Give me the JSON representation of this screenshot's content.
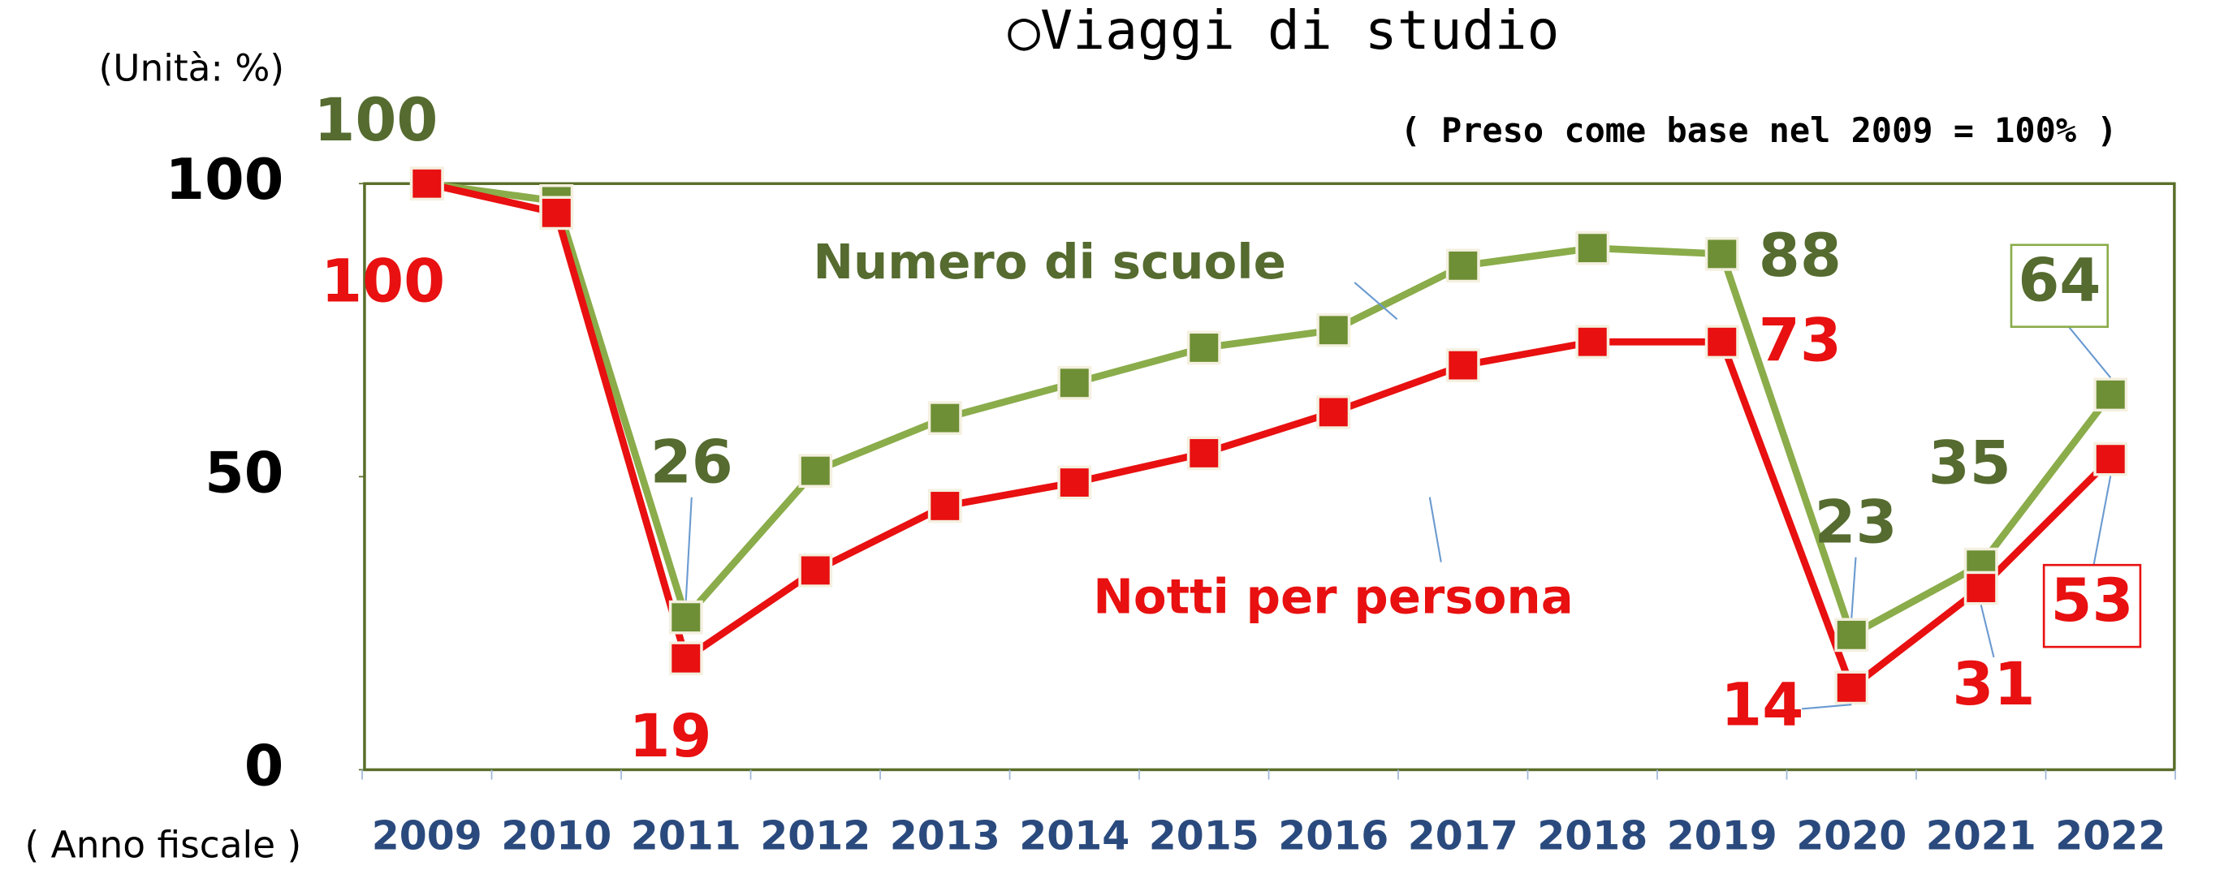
{
  "chart_data": {
    "type": "line",
    "title": "○Viaggi di studio",
    "subtitle": "( Preso come base nel 2009 = 100% )",
    "y_axis_label": "(Unità: %)",
    "x_axis_label": "( Anno fiscale )",
    "categories": [
      "2009",
      "2010",
      "2011",
      "2012",
      "2013",
      "2014",
      "2015",
      "2016",
      "2017",
      "2018",
      "2019",
      "2020",
      "2021",
      "2022"
    ],
    "series": [
      {
        "name": "Numero di scuole",
        "color": "#8aac4a",
        "marker_color": "#6e8f35",
        "label_color": "#556b2f",
        "values": [
          100,
          97,
          26,
          51,
          60,
          66,
          72,
          75,
          86,
          89,
          88,
          23,
          35,
          64
        ]
      },
      {
        "name": "Notti per persona",
        "color": "#e81010",
        "marker_color": "#e81010",
        "label_color": "#e81010",
        "values": [
          100,
          95,
          19,
          34,
          45,
          49,
          54,
          61,
          69,
          73,
          73,
          14,
          31,
          53
        ]
      }
    ],
    "ylim": [
      0,
      100
    ],
    "yticks": [
      0,
      50,
      100
    ],
    "grid": false
  }
}
